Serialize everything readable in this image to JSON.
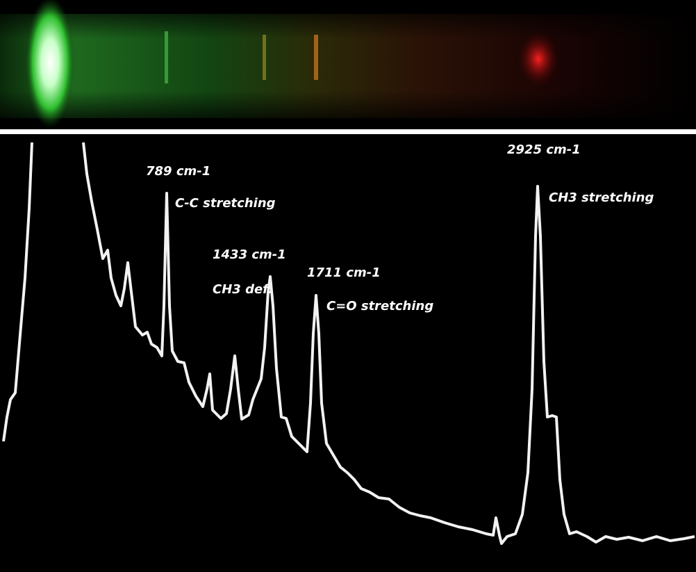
{
  "annotations": [
    {
      "wavenumber": "789 cm-1",
      "assignment": "C-C stretching"
    },
    {
      "wavenumber": "1433 cm-1",
      "assignment": "CH3 def."
    },
    {
      "wavenumber": "1711 cm-1",
      "assignment": "C=O stretching"
    },
    {
      "wavenumber": "2925 cm-1",
      "assignment": "CH3 stretching"
    }
  ]
}
